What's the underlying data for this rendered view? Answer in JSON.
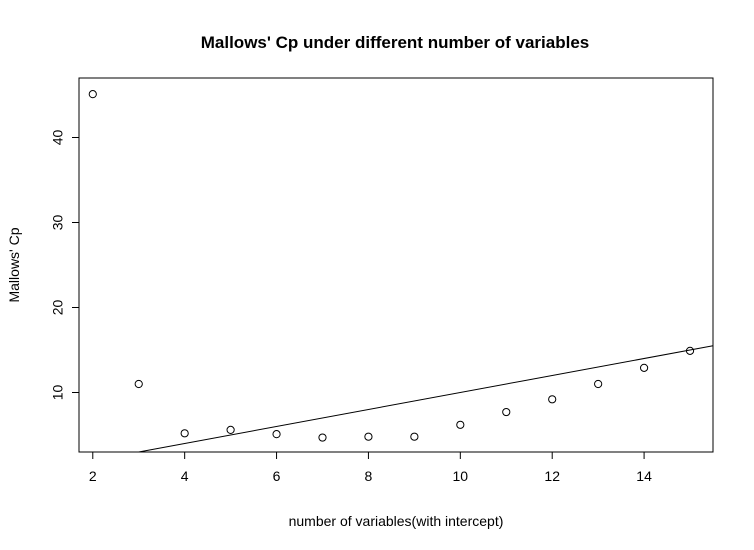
{
  "chart_data": {
    "type": "scatter",
    "title": "Mallows' Cp under different number of variables",
    "xlabel": "number of variables(with intercept)",
    "ylabel": "Mallows' Cp",
    "xlim": [
      1.7,
      15.5
    ],
    "ylim": [
      3.0,
      47.0
    ],
    "x_ticks": [
      2,
      4,
      6,
      8,
      10,
      12,
      14
    ],
    "y_ticks": [
      10,
      20,
      30,
      40
    ],
    "grid": false,
    "legend": "none",
    "points": {
      "x": [
        2,
        3,
        4,
        5,
        6,
        7,
        8,
        9,
        10,
        11,
        12,
        13,
        14,
        15
      ],
      "y": [
        45.1,
        11.0,
        5.2,
        5.6,
        5.1,
        4.7,
        4.8,
        4.8,
        6.2,
        7.7,
        9.2,
        11.0,
        12.9,
        14.9
      ]
    },
    "reference_line": {
      "intercept": 0,
      "slope": 1
    },
    "colors": {
      "points": "#000000",
      "line": "#000000",
      "background": "#ffffff"
    }
  }
}
